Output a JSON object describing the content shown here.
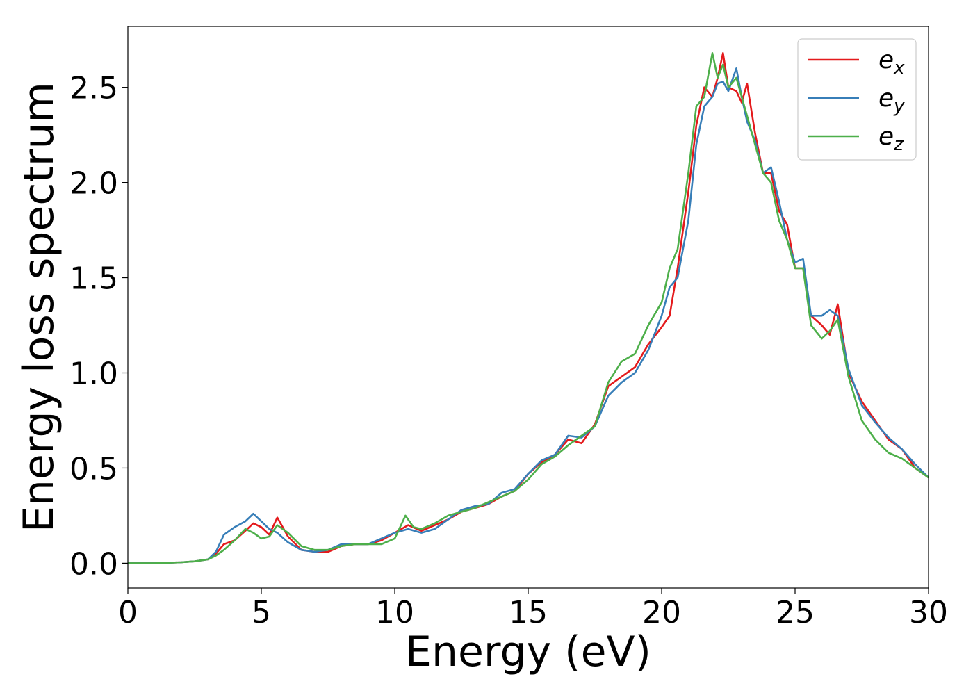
{
  "chart_data": {
    "type": "line",
    "xlabel": "Energy (eV)",
    "ylabel": "Energy loss spectrum",
    "xlim": [
      0,
      30
    ],
    "ylim": [
      -0.13,
      2.82
    ],
    "xticks": [
      0,
      5,
      10,
      15,
      20,
      25,
      30
    ],
    "yticks": [
      0.0,
      0.5,
      1.0,
      1.5,
      2.0,
      2.5
    ],
    "xtick_labels": [
      "0",
      "5",
      "10",
      "15",
      "20",
      "25",
      "30"
    ],
    "ytick_labels": [
      "0.0",
      "0.5",
      "1.0",
      "1.5",
      "2.0",
      "2.5"
    ],
    "grid": false,
    "legend_position": "top-right",
    "series": [
      {
        "name": "e_x",
        "legend_main": "e",
        "legend_sub": "x",
        "color": "#e41a1c",
        "x": [
          0,
          1,
          2,
          2.5,
          3.0,
          3.3,
          3.6,
          4.0,
          4.4,
          4.7,
          5.0,
          5.3,
          5.6,
          6.0,
          6.5,
          7.0,
          7.5,
          8.0,
          8.5,
          9.0,
          9.5,
          10.0,
          10.5,
          11.0,
          11.5,
          12.0,
          12.5,
          13.0,
          13.5,
          14.0,
          14.5,
          15.0,
          15.5,
          16.0,
          16.5,
          17.0,
          17.5,
          18.0,
          18.5,
          19.0,
          19.5,
          20.0,
          20.3,
          20.6,
          21.0,
          21.3,
          21.6,
          21.9,
          22.1,
          22.3,
          22.5,
          22.8,
          23.0,
          23.2,
          23.5,
          23.8,
          24.1,
          24.4,
          24.7,
          25.0,
          25.3,
          25.6,
          26.0,
          26.3,
          26.6,
          27.0,
          27.5,
          28.0,
          28.5,
          29.0,
          29.5,
          30.0
        ],
        "y": [
          0.0,
          0.0,
          0.005,
          0.01,
          0.02,
          0.05,
          0.1,
          0.12,
          0.17,
          0.21,
          0.19,
          0.15,
          0.24,
          0.14,
          0.07,
          0.06,
          0.06,
          0.09,
          0.1,
          0.1,
          0.12,
          0.16,
          0.2,
          0.17,
          0.2,
          0.23,
          0.27,
          0.29,
          0.31,
          0.35,
          0.38,
          0.47,
          0.53,
          0.57,
          0.65,
          0.63,
          0.73,
          0.93,
          0.98,
          1.03,
          1.15,
          1.24,
          1.3,
          1.55,
          1.95,
          2.3,
          2.5,
          2.45,
          2.55,
          2.68,
          2.5,
          2.48,
          2.42,
          2.52,
          2.26,
          2.05,
          2.05,
          1.85,
          1.78,
          1.55,
          1.55,
          1.3,
          1.25,
          1.2,
          1.36,
          1.0,
          0.85,
          0.75,
          0.65,
          0.6,
          0.5,
          0.45
        ]
      },
      {
        "name": "e_y",
        "legend_main": "e",
        "legend_sub": "y",
        "color": "#377eb8",
        "x": [
          0,
          1,
          2,
          2.5,
          3.0,
          3.3,
          3.6,
          4.0,
          4.4,
          4.7,
          5.0,
          5.3,
          5.6,
          6.0,
          6.5,
          7.0,
          7.5,
          8.0,
          8.5,
          9.0,
          9.5,
          10.0,
          10.5,
          11.0,
          11.5,
          12.0,
          12.5,
          13.0,
          13.5,
          14.0,
          14.5,
          15.0,
          15.5,
          16.0,
          16.5,
          17.0,
          17.5,
          18.0,
          18.5,
          19.0,
          19.5,
          20.0,
          20.3,
          20.6,
          21.0,
          21.3,
          21.6,
          21.9,
          22.1,
          22.3,
          22.5,
          22.8,
          23.0,
          23.2,
          23.5,
          23.8,
          24.1,
          24.4,
          24.7,
          25.0,
          25.3,
          25.6,
          26.0,
          26.3,
          26.6,
          27.0,
          27.5,
          28.0,
          28.5,
          29.0,
          29.5,
          30.0
        ],
        "y": [
          0.0,
          0.0,
          0.005,
          0.01,
          0.02,
          0.06,
          0.15,
          0.19,
          0.22,
          0.26,
          0.22,
          0.18,
          0.16,
          0.11,
          0.07,
          0.06,
          0.07,
          0.1,
          0.1,
          0.1,
          0.13,
          0.16,
          0.18,
          0.16,
          0.18,
          0.23,
          0.28,
          0.3,
          0.31,
          0.37,
          0.39,
          0.47,
          0.54,
          0.57,
          0.67,
          0.66,
          0.72,
          0.88,
          0.95,
          1.0,
          1.12,
          1.3,
          1.45,
          1.5,
          1.8,
          2.2,
          2.4,
          2.45,
          2.52,
          2.53,
          2.48,
          2.6,
          2.45,
          2.32,
          2.22,
          2.05,
          2.08,
          1.9,
          1.7,
          1.58,
          1.6,
          1.3,
          1.3,
          1.33,
          1.3,
          1.02,
          0.83,
          0.74,
          0.66,
          0.6,
          0.52,
          0.45
        ]
      },
      {
        "name": "e_z",
        "legend_main": "e",
        "legend_sub": "z",
        "color": "#4daf4a",
        "x": [
          0,
          1,
          2,
          2.5,
          3.0,
          3.3,
          3.6,
          4.0,
          4.4,
          4.7,
          5.0,
          5.3,
          5.6,
          6.0,
          6.5,
          7.0,
          7.5,
          8.0,
          8.5,
          9.0,
          9.5,
          10.0,
          10.4,
          10.7,
          11.0,
          11.5,
          12.0,
          12.5,
          13.0,
          13.5,
          14.0,
          14.5,
          15.0,
          15.5,
          16.0,
          16.5,
          17.0,
          17.5,
          18.0,
          18.5,
          19.0,
          19.5,
          20.0,
          20.3,
          20.6,
          21.0,
          21.3,
          21.6,
          21.9,
          22.1,
          22.3,
          22.5,
          22.8,
          23.0,
          23.2,
          23.5,
          23.8,
          24.1,
          24.4,
          24.7,
          25.0,
          25.3,
          25.6,
          26.0,
          26.3,
          26.6,
          27.0,
          27.5,
          28.0,
          28.5,
          29.0,
          29.5,
          30.0
        ],
        "y": [
          0.0,
          0.0,
          0.005,
          0.01,
          0.02,
          0.04,
          0.07,
          0.12,
          0.18,
          0.16,
          0.13,
          0.14,
          0.2,
          0.16,
          0.09,
          0.07,
          0.07,
          0.09,
          0.1,
          0.1,
          0.1,
          0.13,
          0.25,
          0.19,
          0.18,
          0.21,
          0.25,
          0.27,
          0.29,
          0.32,
          0.35,
          0.38,
          0.44,
          0.52,
          0.56,
          0.62,
          0.67,
          0.72,
          0.95,
          1.06,
          1.1,
          1.25,
          1.37,
          1.55,
          1.65,
          2.05,
          2.4,
          2.45,
          2.68,
          2.55,
          2.62,
          2.5,
          2.55,
          2.45,
          2.35,
          2.2,
          2.05,
          2.0,
          1.8,
          1.7,
          1.55,
          1.55,
          1.25,
          1.18,
          1.22,
          1.28,
          0.98,
          0.75,
          0.65,
          0.58,
          0.55,
          0.5,
          0.45
        ]
      }
    ]
  }
}
